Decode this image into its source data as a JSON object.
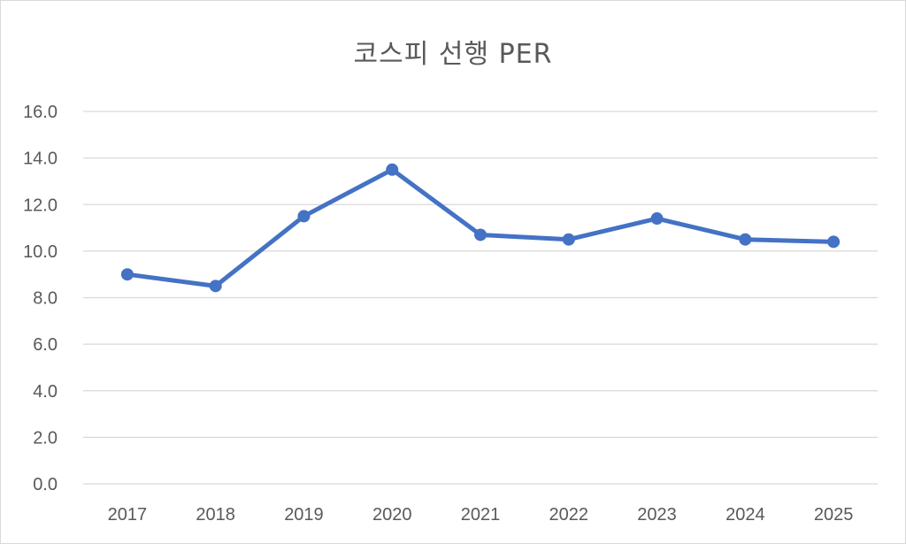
{
  "chart_data": {
    "type": "line",
    "title": "코스피 선행 PER",
    "xlabel": "",
    "ylabel": "",
    "categories": [
      "2017",
      "2018",
      "2019",
      "2020",
      "2021",
      "2022",
      "2023",
      "2024",
      "2025"
    ],
    "series": [
      {
        "values": [
          9.0,
          8.5,
          11.5,
          13.5,
          10.7,
          10.5,
          11.4,
          10.5,
          10.4
        ],
        "color": "#4472c4"
      }
    ],
    "ylim": [
      0,
      16
    ],
    "y_ticks": [
      "0.0",
      "2.0",
      "4.0",
      "6.0",
      "8.0",
      "10.0",
      "12.0",
      "14.0",
      "16.0"
    ],
    "grid": "horizontal",
    "legend": "none",
    "gridline_color": "#d9d9d9"
  }
}
